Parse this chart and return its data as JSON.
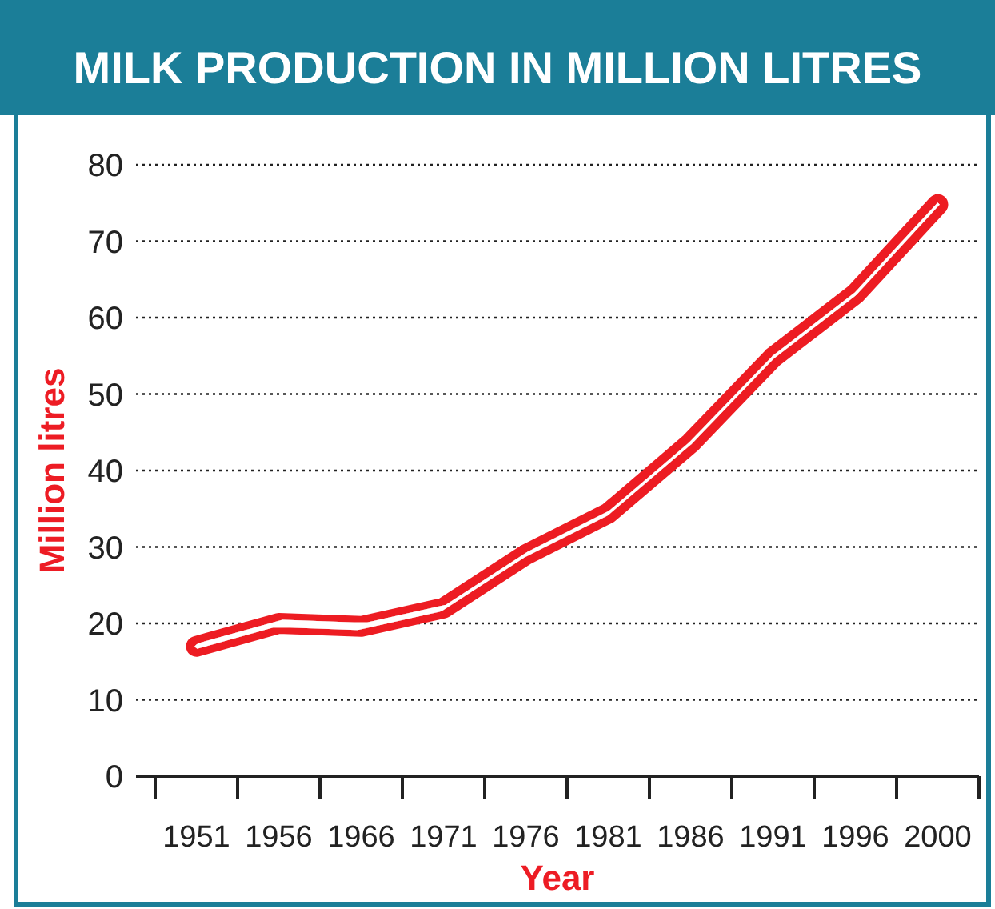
{
  "chart_data": {
    "type": "line",
    "title": "MILK PRODUCTION IN MILLION LITRES",
    "xlabel": "Year",
    "ylabel": "Million litres",
    "categories": [
      "1951",
      "1956",
      "1966",
      "1971",
      "1976",
      "1981",
      "1986",
      "1991",
      "1996",
      "2000"
    ],
    "series": [
      {
        "color": "#ed1c24",
        "values": [
          17,
          20,
          19.6,
          22,
          29,
          34.4,
          43.6,
          54.8,
          63.1,
          74.8
        ]
      }
    ],
    "ylim": [
      0,
      80
    ],
    "yticks": [
      0,
      10,
      20,
      30,
      40,
      50,
      60,
      70,
      80
    ],
    "grid": "y",
    "marker": "none",
    "line_style": "solid"
  }
}
